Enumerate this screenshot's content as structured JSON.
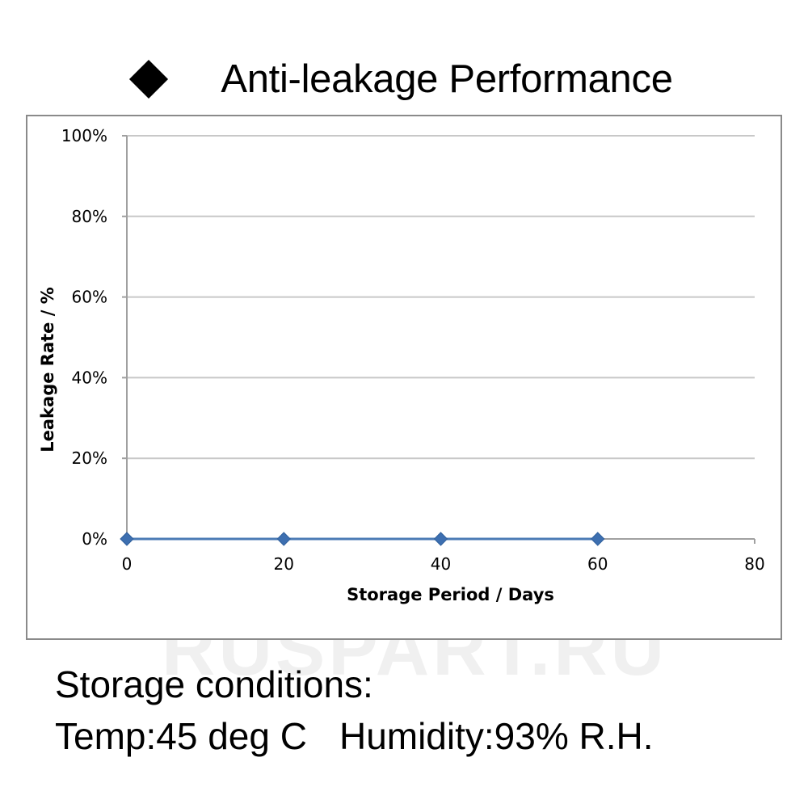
{
  "title": "Anti-leakage Performance",
  "watermark": "RUSPART.RU",
  "conditions": {
    "heading": "Storage conditions:",
    "temp": "Temp:45 deg C",
    "humidity": "Humidity:93% R.H."
  },
  "colors": {
    "series": "#4a7ab5",
    "marker": "#3d6fb0",
    "grid": "#c8c8c8",
    "axis": "#a0a0a0",
    "frame": "#8a8a8a"
  },
  "chart_data": {
    "type": "line",
    "title": "",
    "xlabel": "Storage Period / Days",
    "ylabel": "Leakage Rate / %",
    "xlim": [
      0,
      80
    ],
    "ylim": [
      0,
      100
    ],
    "x_ticks": [
      0,
      20,
      40,
      60,
      80
    ],
    "x_tick_labels": [
      "0",
      "20",
      "40",
      "60",
      "80"
    ],
    "y_ticks": [
      0,
      20,
      40,
      60,
      80,
      100
    ],
    "y_tick_labels": [
      "0%",
      "20%",
      "40%",
      "60%",
      "80%",
      "100%"
    ],
    "grid": true,
    "series": [
      {
        "x": [
          0,
          20,
          40,
          60
        ],
        "values": [
          0,
          0,
          0,
          0
        ]
      }
    ]
  }
}
